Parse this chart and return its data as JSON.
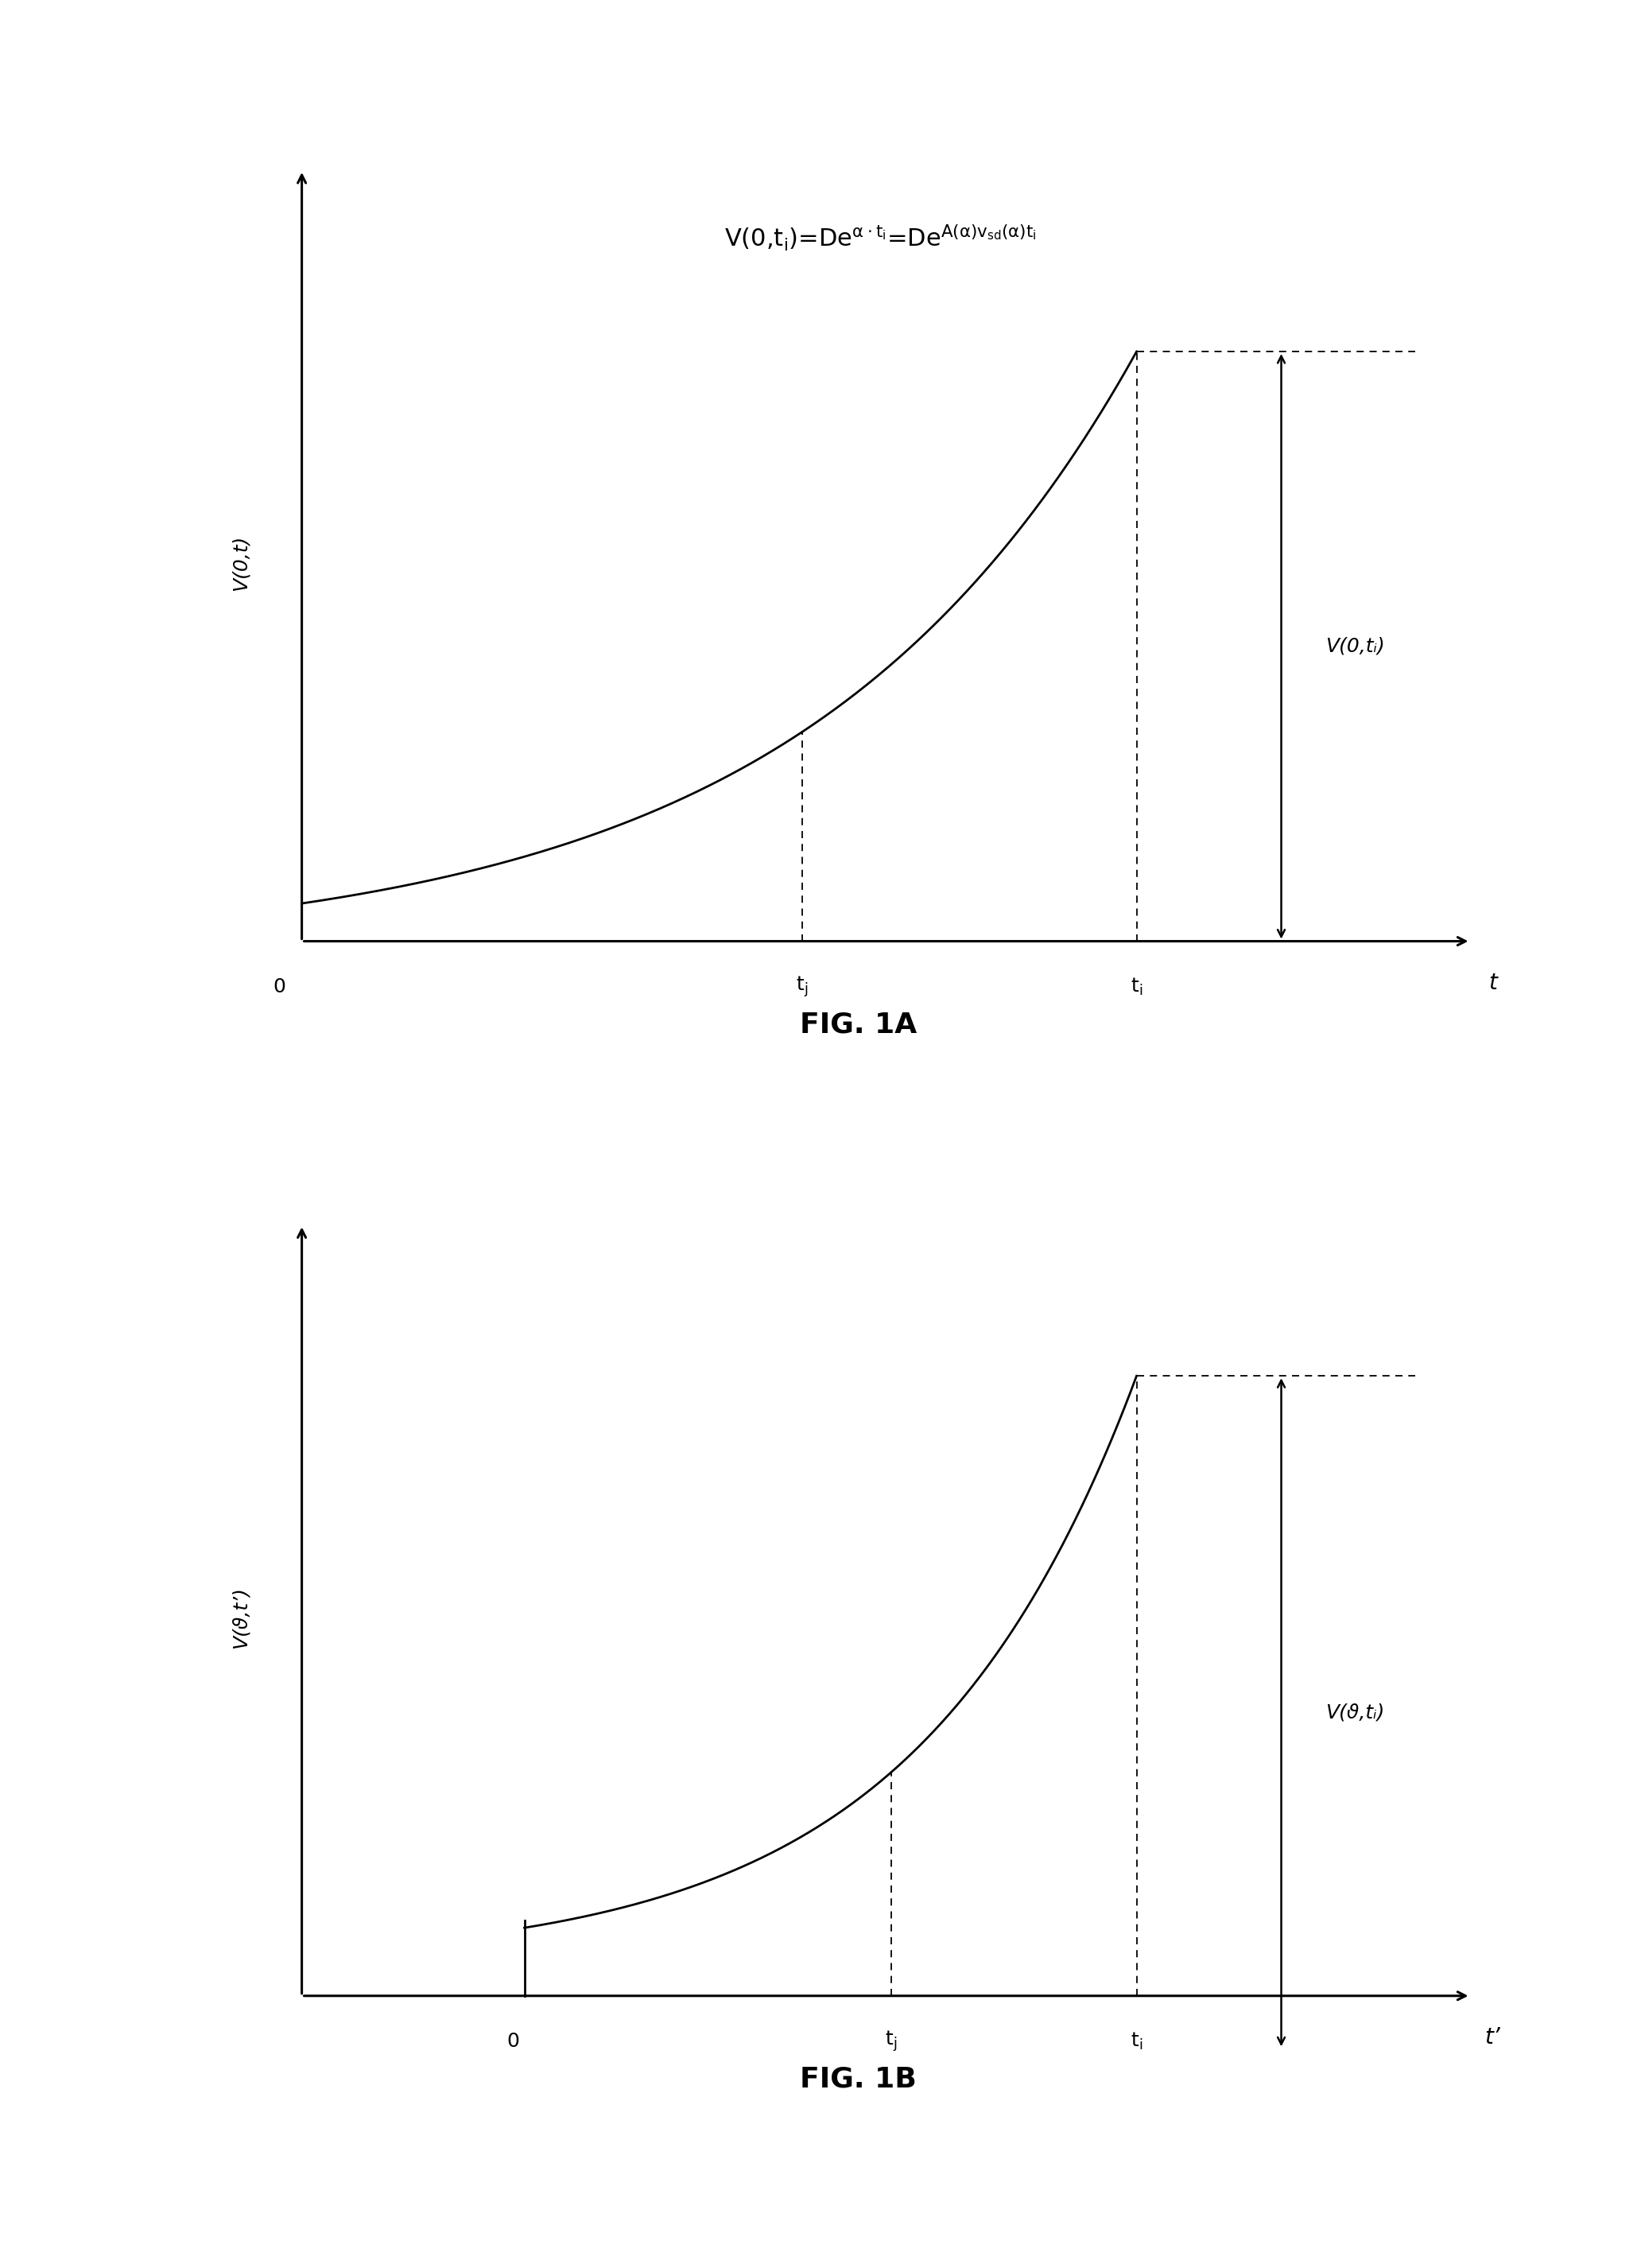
{
  "fig_width": 20.64,
  "fig_height": 28.52,
  "bg_color": "#ffffff",
  "line_color": "#000000",
  "fig1a": {
    "title": "FIG. 1A",
    "ylabel": "V(0,t)",
    "xlabel": "t",
    "annotation": "V(0,tᵢ)"
  },
  "fig1b": {
    "title": "FIG. 1B",
    "ylabel": "V(ϑ,t’)",
    "xlabel": "t’",
    "annotation": "V(ϑ,tᵢ)"
  }
}
